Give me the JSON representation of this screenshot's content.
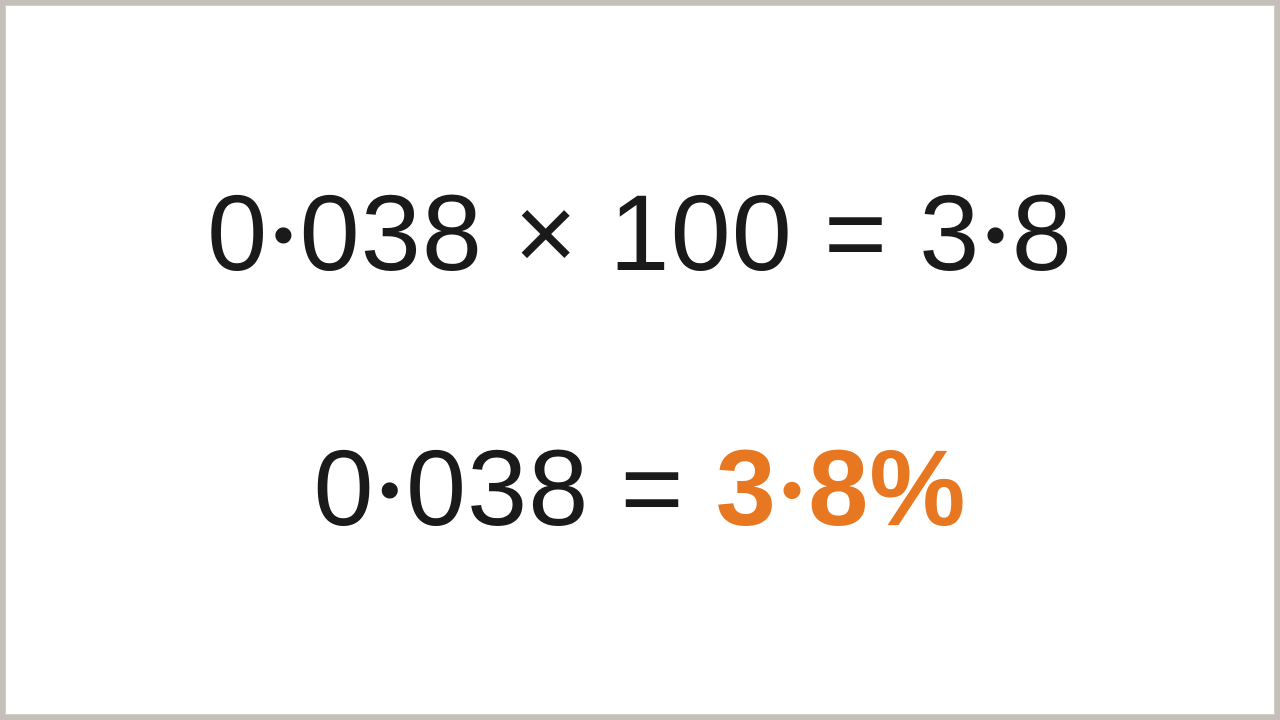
{
  "slide": {
    "type": "infographic",
    "background_color": "#ffffff",
    "outer_background_color": "#c4bfb9",
    "border_color": "#d0ccc6",
    "text_color": "#1a1a1a",
    "highlight_color": "#e87722",
    "font_family": "Arial",
    "equation1": {
      "fontsize": 108,
      "fontweight": 400,
      "parts": {
        "lhs_int": "0",
        "lhs_frac": "038",
        "times": "×",
        "multiplier": "100",
        "equals": "=",
        "rhs_int": "3",
        "rhs_frac": "8"
      }
    },
    "equation2": {
      "fontsize": 108,
      "fontweight": 400,
      "highlight_fontweight": 700,
      "parts": {
        "lhs_int": "0",
        "lhs_frac": "038",
        "equals": "=",
        "rhs_int": "3",
        "rhs_frac": "8%"
      }
    }
  }
}
